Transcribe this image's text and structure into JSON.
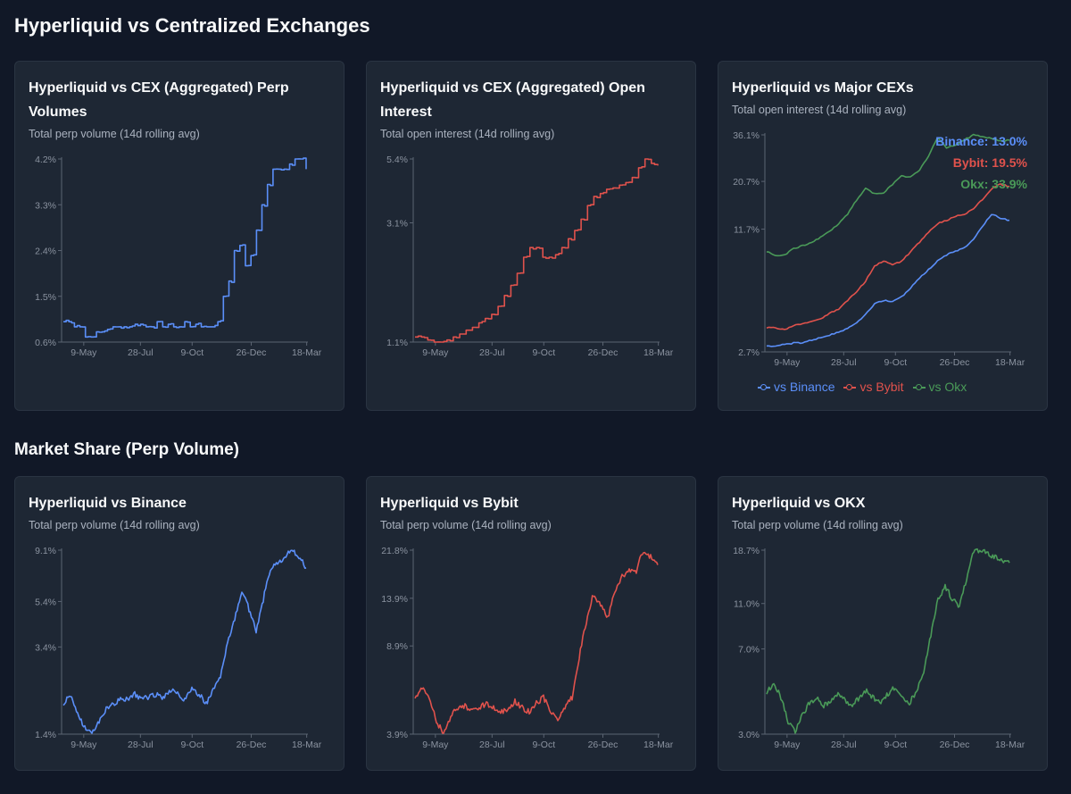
{
  "sections": {
    "top_title": "Hyperliquid vs Centralized Exchanges",
    "bottom_title": "Market Share (Perp Volume)"
  },
  "colors": {
    "blue": "#5b8ff9",
    "red": "#e0524c",
    "green": "#4a9a58"
  },
  "cards": [
    {
      "title": "Hyperliquid vs CEX (Aggregated) Perp Volumes",
      "subtitle": "Total perp volume (14d rolling avg)",
      "chart_data": {
        "type": "line",
        "title": "Hyperliquid vs CEX (Aggregated) Perp Volumes",
        "subtitle": "Total perp volume (14d rolling avg)",
        "x_ticks": [
          "9-May",
          "28-Jul",
          "9-Oct",
          "26-Dec",
          "18-Mar"
        ],
        "y_ticks": [
          "0.6%",
          "1.5%",
          "2.4%",
          "3.3%",
          "4.2%"
        ],
        "ylim": [
          0.6,
          4.2
        ],
        "scale": "linear",
        "series": [
          {
            "color": "blue",
            "style": "step",
            "values": [
              1.0,
              1.0,
              0.9,
              0.9,
              0.7,
              0.7,
              0.8,
              0.8,
              0.85,
              0.9,
              0.9,
              0.9,
              0.9,
              0.95,
              0.95,
              0.9,
              0.9,
              1.0,
              0.9,
              0.95,
              0.9,
              0.9,
              1.0,
              0.9,
              0.95,
              0.9,
              0.9,
              0.9,
              1.0,
              1.5,
              1.8,
              2.4,
              2.5,
              2.1,
              2.3,
              2.8,
              3.3,
              3.7,
              4.0,
              4.0,
              4.0,
              4.1,
              4.2,
              4.2,
              4.0
            ]
          }
        ]
      }
    },
    {
      "title": "Hyperliquid vs CEX (Aggregated) Open Interest",
      "subtitle": "Total open interest (14d rolling avg)",
      "chart_data": {
        "type": "line",
        "title": "Hyperliquid vs CEX (Aggregated) Open Interest",
        "subtitle": "Total open interest (14d rolling avg)",
        "x_ticks": [
          "9-May",
          "28-Jul",
          "9-Oct",
          "26-Dec",
          "18-Mar"
        ],
        "y_ticks": [
          "1.1%",
          "3.1%",
          "5.4%"
        ],
        "ylim": [
          1.1,
          5.4
        ],
        "scale": "log",
        "series": [
          {
            "color": "red",
            "style": "step",
            "values": [
              1.15,
              1.15,
              1.12,
              1.1,
              1.1,
              1.12,
              1.15,
              1.18,
              1.22,
              1.25,
              1.3,
              1.35,
              1.4,
              1.5,
              1.65,
              1.8,
              2.0,
              2.3,
              2.5,
              2.5,
              2.3,
              2.3,
              2.35,
              2.5,
              2.7,
              2.9,
              3.2,
              3.6,
              3.9,
              4.0,
              4.15,
              4.2,
              4.3,
              4.4,
              4.6,
              5.0,
              5.4,
              5.2,
              5.1
            ]
          }
        ]
      }
    },
    {
      "title": "Hyperliquid vs Major CEXs",
      "subtitle": "Total open interest (14d rolling avg)",
      "chart_data": {
        "type": "line",
        "title": "Hyperliquid vs Major CEXs",
        "subtitle": "Total open interest (14d rolling avg)",
        "x_ticks": [
          "9-May",
          "28-Jul",
          "9-Oct",
          "26-Dec",
          "18-Mar"
        ],
        "y_ticks": [
          "2.7%",
          "11.7%",
          "20.7%",
          "36.1%"
        ],
        "ylim": [
          2.7,
          36.1
        ],
        "scale": "log",
        "annotations": [
          "Binance: 13.0%",
          "Bybit: 19.5%",
          "Okx: 33.9%"
        ],
        "legend": [
          "vs Binance",
          "vs Bybit",
          "vs Okx"
        ],
        "legend_position": "bottom",
        "series": [
          {
            "name": "vs Binance",
            "color": "blue",
            "style": "smooth",
            "values": [
              2.9,
              2.9,
              2.95,
              3.0,
              3.0,
              3.1,
              3.2,
              3.3,
              3.4,
              3.6,
              3.8,
              4.2,
              4.8,
              5.0,
              4.9,
              5.2,
              5.8,
              6.5,
              7.2,
              8.0,
              8.6,
              9.0,
              9.4,
              10.3,
              12.0,
              14.0,
              13.3,
              13.0
            ]
          },
          {
            "name": "vs Bybit",
            "color": "red",
            "style": "smooth",
            "values": [
              3.6,
              3.6,
              3.5,
              3.7,
              3.8,
              3.9,
              4.0,
              4.3,
              4.5,
              5.0,
              5.5,
              6.3,
              7.5,
              8.0,
              7.6,
              8.0,
              8.9,
              10.0,
              11.3,
              12.5,
              13.0,
              13.6,
              14.0,
              15.0,
              16.7,
              19.0,
              20.0,
              19.5
            ]
          },
          {
            "name": "vs Okx",
            "color": "green",
            "style": "smooth",
            "values": [
              9.0,
              8.5,
              8.6,
              9.3,
              9.6,
              10.0,
              10.6,
              11.4,
              12.5,
              14.0,
              16.5,
              19.0,
              17.8,
              18.0,
              20.0,
              22.0,
              22.0,
              23.5,
              28.0,
              35.0,
              31.0,
              32.0,
              34.0,
              36.0,
              35.5,
              34.5,
              33.5,
              33.9
            ]
          }
        ]
      }
    },
    {
      "title": "Hyperliquid vs Binance",
      "subtitle": "Total perp volume (14d rolling avg)",
      "chart_data": {
        "type": "line",
        "title": "Hyperliquid vs Binance",
        "subtitle": "Total perp volume (14d rolling avg)",
        "x_ticks": [
          "9-May",
          "28-Jul",
          "9-Oct",
          "26-Dec",
          "18-Mar"
        ],
        "y_ticks": [
          "1.4%",
          "3.4%",
          "5.4%",
          "9.1%"
        ],
        "ylim": [
          1.4,
          9.1
        ],
        "scale": "log",
        "series": [
          {
            "color": "blue",
            "style": "jagged",
            "values": [
              1.9,
              2.1,
              1.7,
              1.5,
              1.4,
              1.6,
              1.8,
              1.9,
              2.0,
              2.0,
              2.1,
              2.0,
              2.05,
              2.1,
              2.0,
              2.2,
              2.1,
              2.0,
              2.2,
              2.1,
              1.9,
              2.2,
              2.5,
              3.5,
              4.5,
              6.0,
              5.0,
              4.0,
              5.5,
              7.5,
              8.0,
              8.5,
              9.1,
              8.5,
              7.6
            ]
          }
        ]
      }
    },
    {
      "title": "Hyperliquid vs Bybit",
      "subtitle": "Total perp volume (14d rolling avg)",
      "chart_data": {
        "type": "line",
        "title": "Hyperliquid vs Bybit",
        "subtitle": "Total perp volume (14d rolling avg)",
        "x_ticks": [
          "9-May",
          "28-Jul",
          "9-Oct",
          "26-Dec",
          "18-Mar"
        ],
        "y_ticks": [
          "3.9%",
          "8.9%",
          "13.9%",
          "21.8%"
        ],
        "ylim": [
          3.9,
          21.8
        ],
        "scale": "log",
        "series": [
          {
            "color": "red",
            "style": "jagged",
            "values": [
              5.5,
              6.0,
              5.5,
              4.4,
              3.9,
              4.6,
              5.0,
              5.1,
              4.8,
              5.0,
              5.2,
              5.0,
              4.8,
              4.9,
              5.3,
              5.0,
              4.8,
              5.2,
              5.5,
              4.8,
              4.5,
              5.0,
              5.5,
              8.0,
              11.0,
              14.5,
              13.0,
              11.5,
              15.0,
              17.0,
              18.0,
              18.0,
              21.8,
              20.5,
              19.0
            ]
          }
        ]
      }
    },
    {
      "title": "Hyperliquid vs OKX",
      "subtitle": "Total perp volume (14d rolling avg)",
      "chart_data": {
        "type": "line",
        "title": "Hyperliquid vs OKX",
        "subtitle": "Total perp volume (14d rolling avg)",
        "x_ticks": [
          "9-May",
          "28-Jul",
          "9-Oct",
          "26-Dec",
          "18-Mar"
        ],
        "y_ticks": [
          "3.0%",
          "7.0%",
          "11.0%",
          "18.7%"
        ],
        "ylim": [
          3.0,
          18.7
        ],
        "scale": "log",
        "series": [
          {
            "color": "green",
            "style": "jagged",
            "values": [
              4.5,
              5.0,
              4.3,
              3.4,
              3.1,
              3.6,
              4.1,
              4.3,
              4.0,
              4.2,
              4.5,
              4.2,
              4.0,
              4.3,
              4.6,
              4.3,
              4.1,
              4.5,
              4.8,
              4.3,
              4.1,
              4.6,
              5.5,
              8.0,
              11.5,
              13.0,
              11.5,
              10.5,
              14.0,
              18.5,
              18.7,
              18.0,
              17.5,
              17.0,
              16.5
            ]
          }
        ]
      }
    }
  ]
}
